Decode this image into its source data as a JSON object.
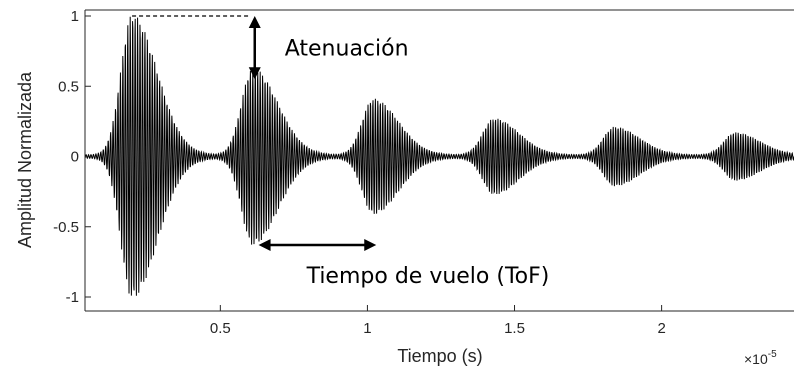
{
  "chart_data": {
    "type": "line",
    "title": "",
    "xlabel": "Tiempo (s)",
    "ylabel": "Amplitud Normalizada",
    "x_exponent_label": "×10",
    "x_exponent_power": "-5",
    "xlim": [
      0.04,
      2.45
    ],
    "ylim": [
      -1.05,
      1.05
    ],
    "x_scale_factor": 1e-05,
    "xticks": [
      0.5,
      1,
      1.5,
      2
    ],
    "xtick_labels": [
      "0.5",
      "1",
      "1.5",
      "2"
    ],
    "yticks": [
      -1,
      -0.5,
      0,
      0.5,
      1
    ],
    "ytick_labels": [
      "-1",
      "-0.5",
      "0",
      "0.5",
      "1"
    ],
    "grid": false,
    "series": [
      {
        "signal": "damped ultrasonic echo train",
        "carrier_cycles_per_unit": 120,
        "echoes": [
          {
            "center": 0.2,
            "peak_amplitude": 1.0,
            "width": 0.085
          },
          {
            "center": 0.61,
            "peak_amplitude": 0.62,
            "width": 0.085
          },
          {
            "center": 1.02,
            "peak_amplitude": 0.4,
            "width": 0.085
          },
          {
            "center": 1.43,
            "peak_amplitude": 0.26,
            "width": 0.085
          },
          {
            "center": 1.84,
            "peak_amplitude": 0.2,
            "width": 0.085
          },
          {
            "center": 2.25,
            "peak_amplitude": 0.16,
            "width": 0.085
          }
        ],
        "color": "#000000"
      }
    ],
    "annotations": {
      "attenuation": {
        "label": "Atenuación",
        "from": {
          "x": 0.6,
          "y": 1.0
        },
        "to": {
          "x": 0.6,
          "y": 0.55
        },
        "reference_line": {
          "x": [
            0.2,
            0.6
          ],
          "y": 1.0
        }
      },
      "time_of_flight": {
        "label": "Tiempo de vuelo (ToF)",
        "from": {
          "x": 0.63,
          "y": -0.63
        },
        "to": {
          "x": 1.03,
          "y": -0.63
        }
      }
    }
  }
}
